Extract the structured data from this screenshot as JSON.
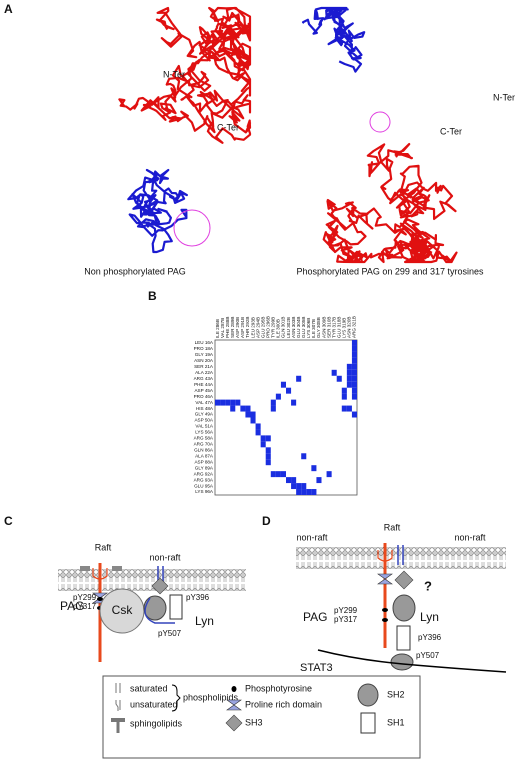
{
  "panels": {
    "A": {
      "label": "A",
      "left": {
        "n_ter": "N-Ter",
        "c_ter": "C-Ter",
        "caption": "Non phosphorylated PAG"
      },
      "right": {
        "n_ter": "N-Ter",
        "c_ter": "C-Ter",
        "caption": "Phosphorylated PAG on 299 and 317 tyrosines"
      }
    },
    "B": {
      "label": "B",
      "rows": [
        "LEU 16A",
        "PRO 18A",
        "GLY 19A",
        "ASN 20A",
        "SER 21A",
        "ALA 22A",
        "ARG 43A",
        "PHE 44A",
        "ASP 45A",
        "PRO 46A",
        "VAL 47A",
        "HIS 48A",
        "GLY 49A",
        "ASP 50A",
        "VAL 51A",
        "LYS 56A",
        "ARG 58A",
        "ARG 70A",
        "GLN 86A",
        "ALA 87A",
        "ASP 88A",
        "GLY 89A",
        "ARG 92A",
        "ARG 93A",
        "GLU 95A",
        "LYS 96A"
      ],
      "columns": [
        "ILE 286B",
        "VAL 287B",
        "PHE 288B",
        "SER 289B",
        "ASP 290B",
        "ASP 291B",
        "THR 292B",
        "LEU 293B",
        "ASP 294B",
        "GLU 295B",
        "PRO 296B",
        "TYR 299B",
        "ILE 300B",
        "GLN 301B",
        "LEU 302B",
        "ASN 303B",
        "GLU 304B",
        "GLU 305B",
        "LYS 306B",
        "ILE 307B",
        "GLY 308B",
        "ASN 309B",
        "SER 310B",
        "TYR 317B",
        "GLU 318B",
        "LYS 319B",
        "ASN 320B",
        "ARG 321B"
      ],
      "contacts": [
        [
          0,
          27
        ],
        [
          1,
          27
        ],
        [
          2,
          27
        ],
        [
          3,
          27
        ],
        [
          4,
          27
        ],
        [
          5,
          27
        ],
        [
          6,
          27
        ],
        [
          7,
          27
        ],
        [
          8,
          27
        ],
        [
          9,
          27
        ],
        [
          4,
          26
        ],
        [
          5,
          26
        ],
        [
          6,
          26
        ],
        [
          7,
          26
        ],
        [
          8,
          25
        ],
        [
          9,
          25
        ],
        [
          5,
          23
        ],
        [
          6,
          24
        ],
        [
          11,
          25
        ],
        [
          11,
          26
        ],
        [
          12,
          27
        ],
        [
          10,
          0
        ],
        [
          10,
          1
        ],
        [
          10,
          2
        ],
        [
          10,
          3
        ],
        [
          10,
          4
        ],
        [
          11,
          3
        ],
        [
          11,
          5
        ],
        [
          11,
          6
        ],
        [
          12,
          6
        ],
        [
          12,
          7
        ],
        [
          13,
          7
        ],
        [
          14,
          8
        ],
        [
          15,
          8
        ],
        [
          16,
          9
        ],
        [
          17,
          9
        ],
        [
          16,
          10
        ],
        [
          18,
          10
        ],
        [
          19,
          10
        ],
        [
          20,
          10
        ],
        [
          7,
          13
        ],
        [
          8,
          14
        ],
        [
          10,
          15
        ],
        [
          10,
          11
        ],
        [
          11,
          11
        ],
        [
          9,
          12
        ],
        [
          6,
          16
        ],
        [
          22,
          11
        ],
        [
          22,
          12
        ],
        [
          22,
          13
        ],
        [
          23,
          14
        ],
        [
          23,
          15
        ],
        [
          24,
          15
        ],
        [
          24,
          16
        ],
        [
          24,
          17
        ],
        [
          25,
          16
        ],
        [
          25,
          17
        ],
        [
          25,
          18
        ],
        [
          25,
          19
        ],
        [
          23,
          20
        ],
        [
          21,
          19
        ],
        [
          19,
          17
        ],
        [
          22,
          22
        ]
      ]
    },
    "C": {
      "label": "C",
      "raft": "Raft",
      "non_raft": "non-raft",
      "pag": "PAG",
      "py299": "pY299",
      "py317": "pY317",
      "csk": "Csk",
      "lyn": "Lyn",
      "py396": "pY396",
      "py507": "pY507"
    },
    "D": {
      "label": "D",
      "non_raft_left": "non-raft",
      "raft": "Raft",
      "non_raft_right": "non-raft",
      "question": "?",
      "pag": "PAG",
      "py299": "pY299",
      "py317": "pY317",
      "lyn": "Lyn",
      "py396": "pY396",
      "py507": "pY507",
      "stat3": "STAT3"
    },
    "legend": {
      "saturated": "saturated",
      "unsaturated": "unsaturated",
      "sphingolipids": "sphingolipids",
      "phospholipids": "phospholipids",
      "phosphotyrosine": "Phosphotyrosine",
      "proline_rich_domain": "Proline rich domain",
      "sh3": "SH3",
      "sh2": "SH2",
      "sh1": "SH1"
    }
  }
}
